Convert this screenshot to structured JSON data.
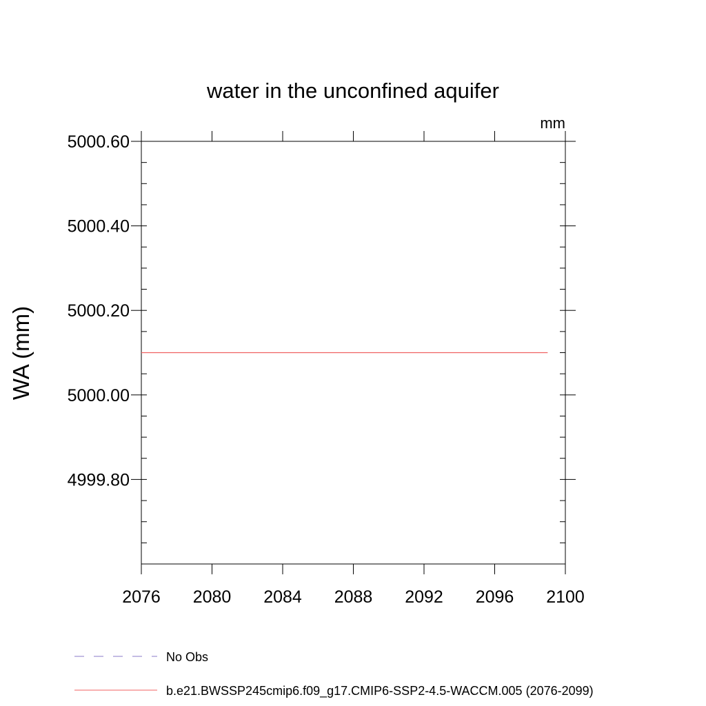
{
  "chart_data": {
    "type": "line",
    "title": "water in the unconfined aquifer",
    "units_label": "mm",
    "xlabel": "",
    "ylabel": "WA  (mm)",
    "xlim": [
      2076,
      2100
    ],
    "ylim": [
      4999.6,
      5000.6
    ],
    "x_ticks": [
      2076,
      2080,
      2084,
      2088,
      2092,
      2096,
      2100
    ],
    "x_tick_labels": [
      "2076",
      "2080",
      "2084",
      "2088",
      "2092",
      "2096",
      "2100"
    ],
    "y_ticks": [
      4999.8,
      5000.0,
      5000.2,
      5000.4,
      5000.6
    ],
    "y_tick_labels": [
      "4999.80",
      "5000.00",
      "5000.20",
      "5000.40",
      "5000.60"
    ],
    "grid": false,
    "legend_position": "bottom",
    "series": [
      {
        "name": "No Obs",
        "color": "#8878c8",
        "dash": "dashed",
        "x": [],
        "y": []
      },
      {
        "name": "b.e21.BWSSP245cmip6.f09_g17.CMIP6-SSP2-4.5-WACCM.005 (2076-2099)",
        "color": "#f06060",
        "dash": "solid",
        "x": [
          2076,
          2099
        ],
        "y": [
          5000.1,
          5000.1
        ]
      }
    ]
  }
}
